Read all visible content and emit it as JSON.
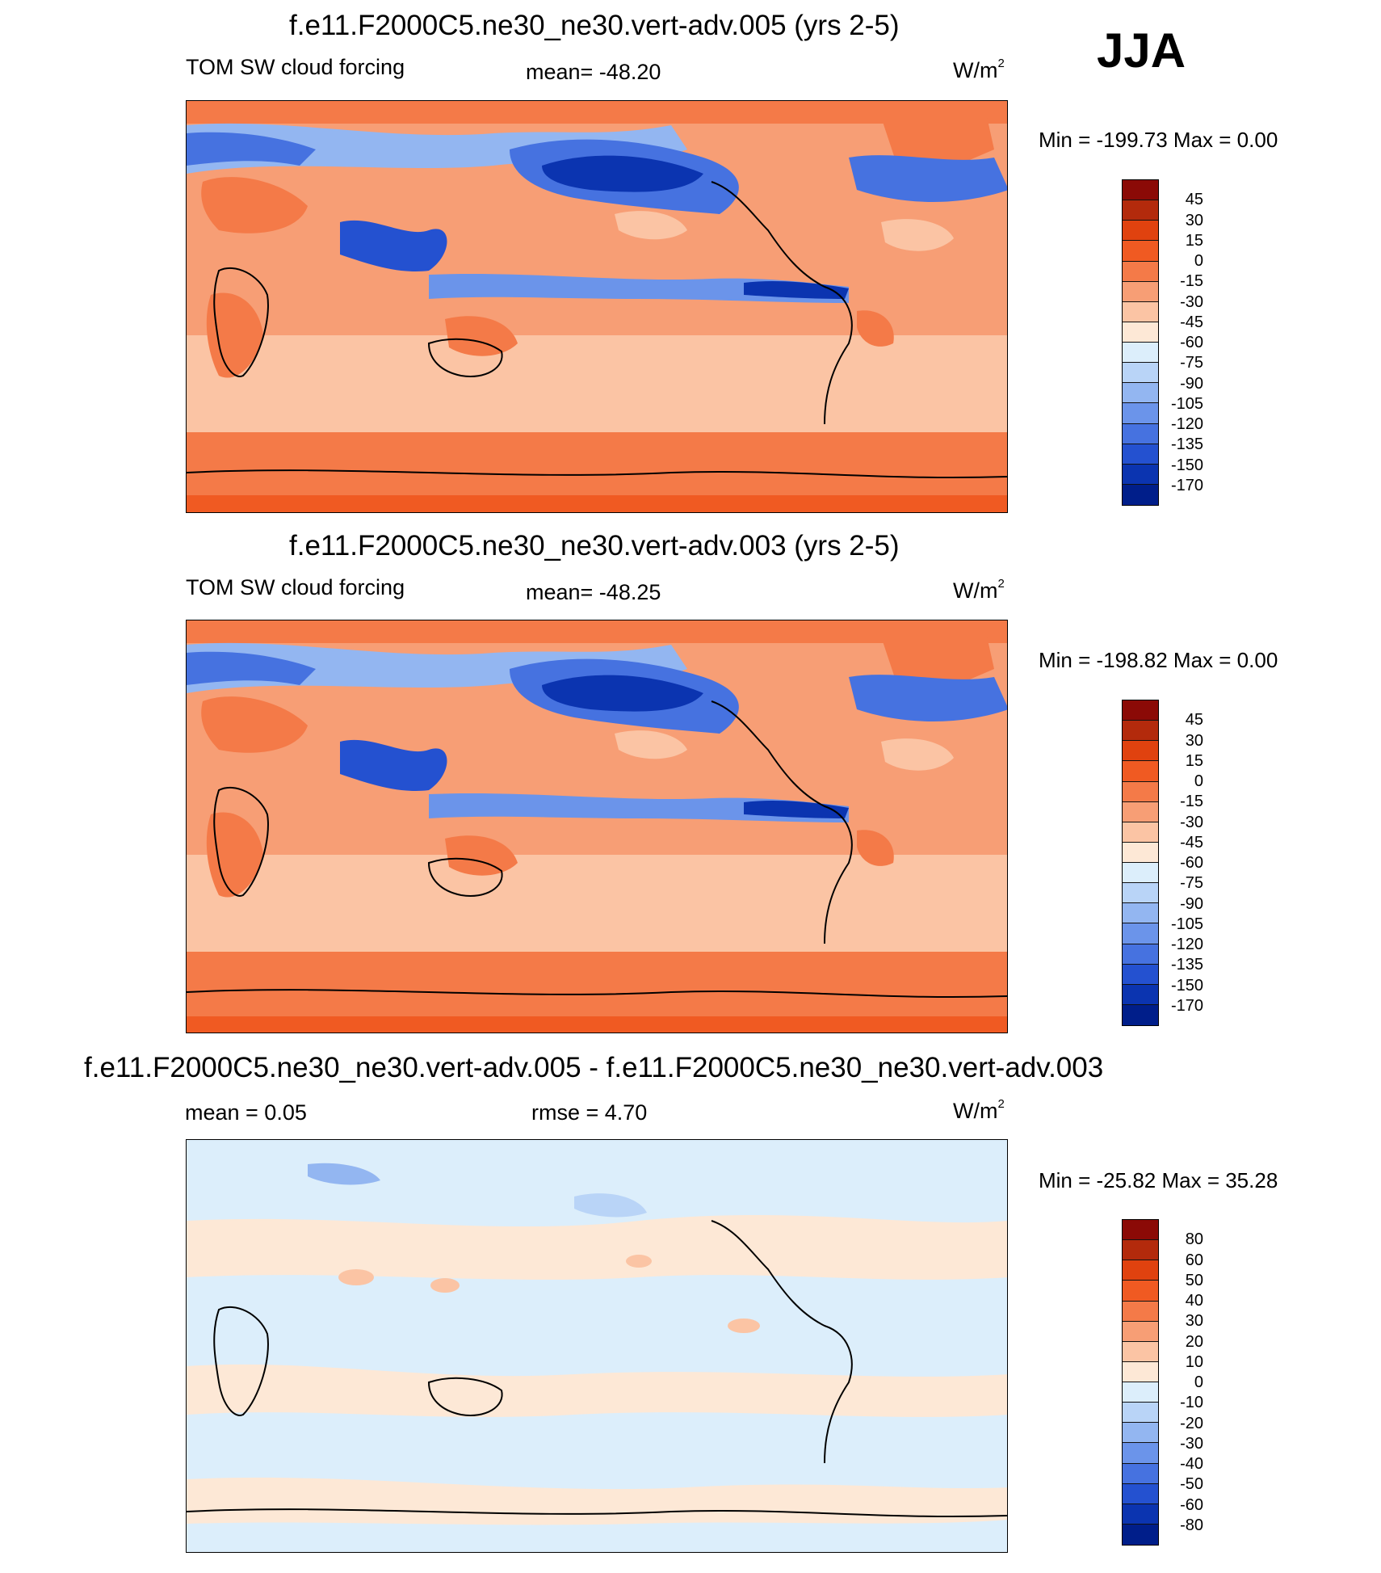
{
  "season": "JJA",
  "panels": [
    {
      "title": "f.e11.F2000C5.ne30_ne30.vert-adv.005 (yrs 2-5)",
      "variable": "TOM SW cloud forcing",
      "stat": "mean= -48.20",
      "units": "W/m",
      "units_sup": "2",
      "minmax": "Min = -199.73 Max =    0.00",
      "colorbar": {
        "ticks": [
          "45",
          "30",
          "15",
          "0",
          "-15",
          "-30",
          "-45",
          "-60",
          "-75",
          "-90",
          "-105",
          "-120",
          "-135",
          "-150",
          "-170"
        ],
        "colors": [
          "#8b0a06",
          "#b32a0c",
          "#e0420f",
          "#f05a22",
          "#f47a48",
          "#f79e75",
          "#fbc4a4",
          "#fde8d6",
          "#dceefb",
          "#b9d4f7",
          "#93b6f1",
          "#6b94ea",
          "#4672e0",
          "#2451d0",
          "#0b34b0",
          "#001e8a"
        ]
      }
    },
    {
      "title": "f.e11.F2000C5.ne30_ne30.vert-adv.003 (yrs 2-5)",
      "variable": "TOM SW cloud forcing",
      "stat": "mean= -48.25",
      "units": "W/m",
      "units_sup": "2",
      "minmax": "Min = -198.82 Max =    0.00",
      "colorbar": {
        "ticks": [
          "45",
          "30",
          "15",
          "0",
          "-15",
          "-30",
          "-45",
          "-60",
          "-75",
          "-90",
          "-105",
          "-120",
          "-135",
          "-150",
          "-170"
        ],
        "colors": [
          "#8b0a06",
          "#b32a0c",
          "#e0420f",
          "#f05a22",
          "#f47a48",
          "#f79e75",
          "#fbc4a4",
          "#fde8d6",
          "#dceefb",
          "#b9d4f7",
          "#93b6f1",
          "#6b94ea",
          "#4672e0",
          "#2451d0",
          "#0b34b0",
          "#001e8a"
        ]
      }
    },
    {
      "title": "f.e11.F2000C5.ne30_ne30.vert-adv.005 - f.e11.F2000C5.ne30_ne30.vert-adv.003",
      "stat_left": "mean =   0.05",
      "stat_mid": "rmse =   4.70",
      "units": "W/m",
      "units_sup": "2",
      "minmax": "Min = -25.82 Max =  35.28",
      "colorbar": {
        "ticks": [
          "80",
          "60",
          "50",
          "40",
          "30",
          "20",
          "10",
          "0",
          "-10",
          "-20",
          "-30",
          "-40",
          "-50",
          "-60",
          "-80"
        ],
        "colors": [
          "#8b0a06",
          "#b32a0c",
          "#e0420f",
          "#f05a22",
          "#f47a48",
          "#f79e75",
          "#fbc4a4",
          "#fde8d6",
          "#dceefb",
          "#b9d4f7",
          "#93b6f1",
          "#6b94ea",
          "#4672e0",
          "#2451d0",
          "#0b34b0",
          "#001e8a"
        ]
      }
    }
  ]
}
